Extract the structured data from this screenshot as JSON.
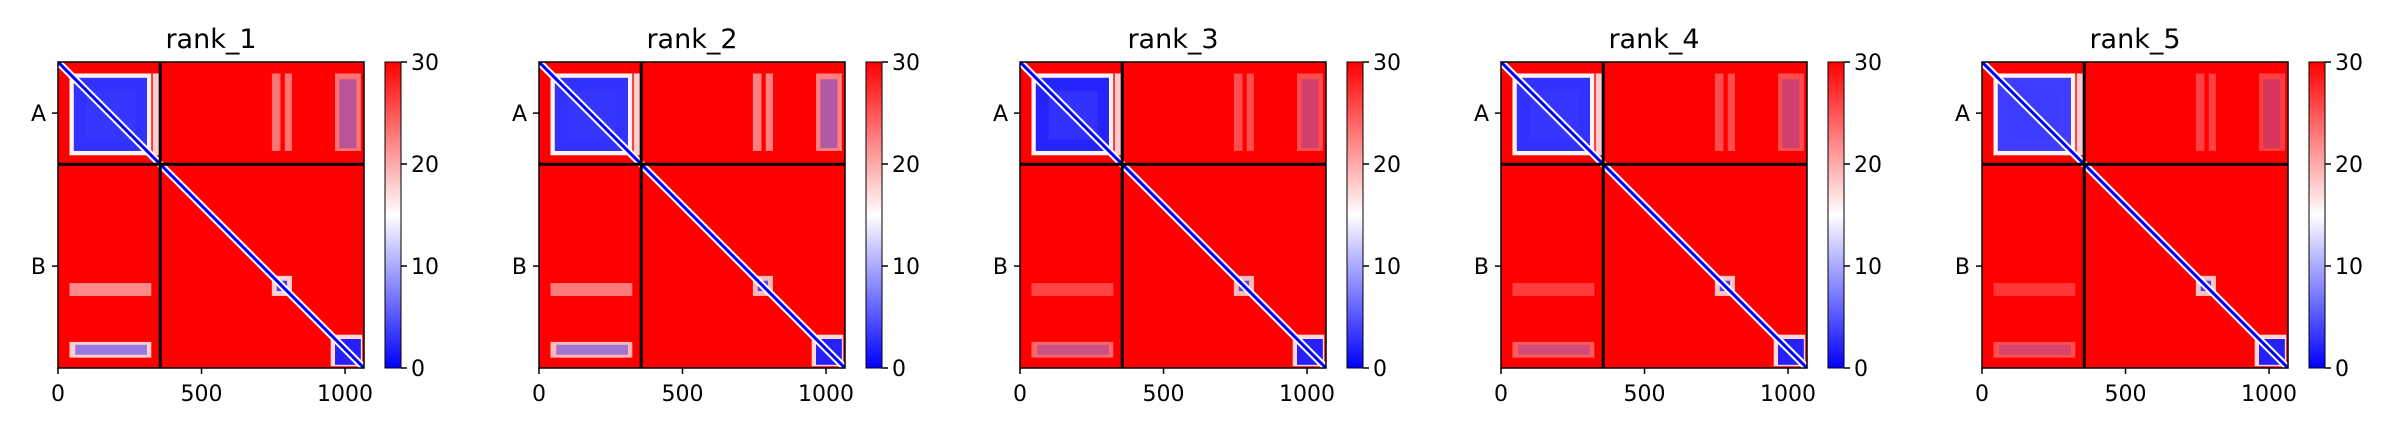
{
  "figure": {
    "colors": {
      "low": "#0000ff",
      "mid": "#ffffff",
      "high": "#ff0000",
      "chain_divider": "#000000",
      "text": "#000000"
    },
    "colormap": "bwr"
  },
  "chart_data": [
    {
      "type": "heatmap",
      "title": "rank_1",
      "x_tick_labels": [
        "0",
        "500",
        "1000"
      ],
      "x_ticks": [
        0,
        500,
        1000
      ],
      "y_tick_labels": [
        "A",
        "B"
      ],
      "xlim": [
        0,
        1066
      ],
      "ylim": [
        1066,
        0
      ],
      "chain_boundary": 356,
      "colorbar": {
        "vmin": 0,
        "vmax": 30,
        "ticks": [
          0,
          10,
          20,
          30
        ],
        "tick_labels": [
          "0",
          "10",
          "20",
          "30"
        ]
      },
      "features": {
        "aa_block_dense": 0.8,
        "ab_strip": 0.45,
        "ba_strip": 0.9,
        "bb_blob_1": 0.9,
        "bb_blob_2": 1.0
      }
    },
    {
      "type": "heatmap",
      "title": "rank_2",
      "x_tick_labels": [
        "0",
        "500",
        "1000"
      ],
      "x_ticks": [
        0,
        500,
        1000
      ],
      "y_tick_labels": [
        "A",
        "B"
      ],
      "xlim": [
        0,
        1066
      ],
      "ylim": [
        1066,
        0
      ],
      "chain_boundary": 356,
      "colorbar": {
        "vmin": 0,
        "vmax": 30,
        "ticks": [
          0,
          10,
          20,
          30
        ],
        "tick_labels": [
          "0",
          "10",
          "20",
          "30"
        ]
      },
      "features": {
        "aa_block_dense": 0.8,
        "ab_strip": 0.5,
        "ba_strip": 0.8,
        "bb_blob_1": 0.8,
        "bb_blob_2": 1.0
      }
    },
    {
      "type": "heatmap",
      "title": "rank_3",
      "x_tick_labels": [
        "0",
        "500",
        "1000"
      ],
      "x_ticks": [
        0,
        500,
        1000
      ],
      "y_tick_labels": [
        "A",
        "B"
      ],
      "xlim": [
        0,
        1066
      ],
      "ylim": [
        1066,
        0
      ],
      "chain_boundary": 356,
      "colorbar": {
        "vmin": 0,
        "vmax": 30,
        "ticks": [
          0,
          10,
          20,
          30
        ],
        "tick_labels": [
          "0",
          "10",
          "20",
          "30"
        ]
      },
      "features": {
        "aa_block_dense": 0.85,
        "ab_strip": 0.3,
        "ba_strip": 0.45,
        "bb_blob_1": 0.8,
        "bb_blob_2": 1.0
      }
    },
    {
      "type": "heatmap",
      "title": "rank_4",
      "x_tick_labels": [
        "0",
        "500",
        "1000"
      ],
      "x_ticks": [
        0,
        500,
        1000
      ],
      "y_tick_labels": [
        "A",
        "B"
      ],
      "xlim": [
        0,
        1066
      ],
      "ylim": [
        1066,
        0
      ],
      "chain_boundary": 356,
      "colorbar": {
        "vmin": 0,
        "vmax": 30,
        "ticks": [
          0,
          10,
          20,
          30
        ],
        "tick_labels": [
          "0",
          "10",
          "20",
          "30"
        ]
      },
      "features": {
        "aa_block_dense": 0.8,
        "ab_strip": 0.3,
        "ba_strip": 0.4,
        "bb_blob_1": 0.85,
        "bb_blob_2": 1.0
      }
    },
    {
      "type": "heatmap",
      "title": "rank_5",
      "x_tick_labels": [
        "0",
        "500",
        "1000"
      ],
      "x_ticks": [
        0,
        500,
        1000
      ],
      "y_tick_labels": [
        "A",
        "B"
      ],
      "xlim": [
        0,
        1066
      ],
      "ylim": [
        1066,
        0
      ],
      "chain_boundary": 356,
      "colorbar": {
        "vmin": 0,
        "vmax": 30,
        "ticks": [
          0,
          10,
          20,
          30
        ],
        "tick_labels": [
          "0",
          "10",
          "20",
          "30"
        ]
      },
      "features": {
        "aa_block_dense": 0.75,
        "ab_strip": 0.25,
        "ba_strip": 0.35,
        "bb_blob_1": 0.85,
        "bb_blob_2": 1.0
      }
    }
  ]
}
